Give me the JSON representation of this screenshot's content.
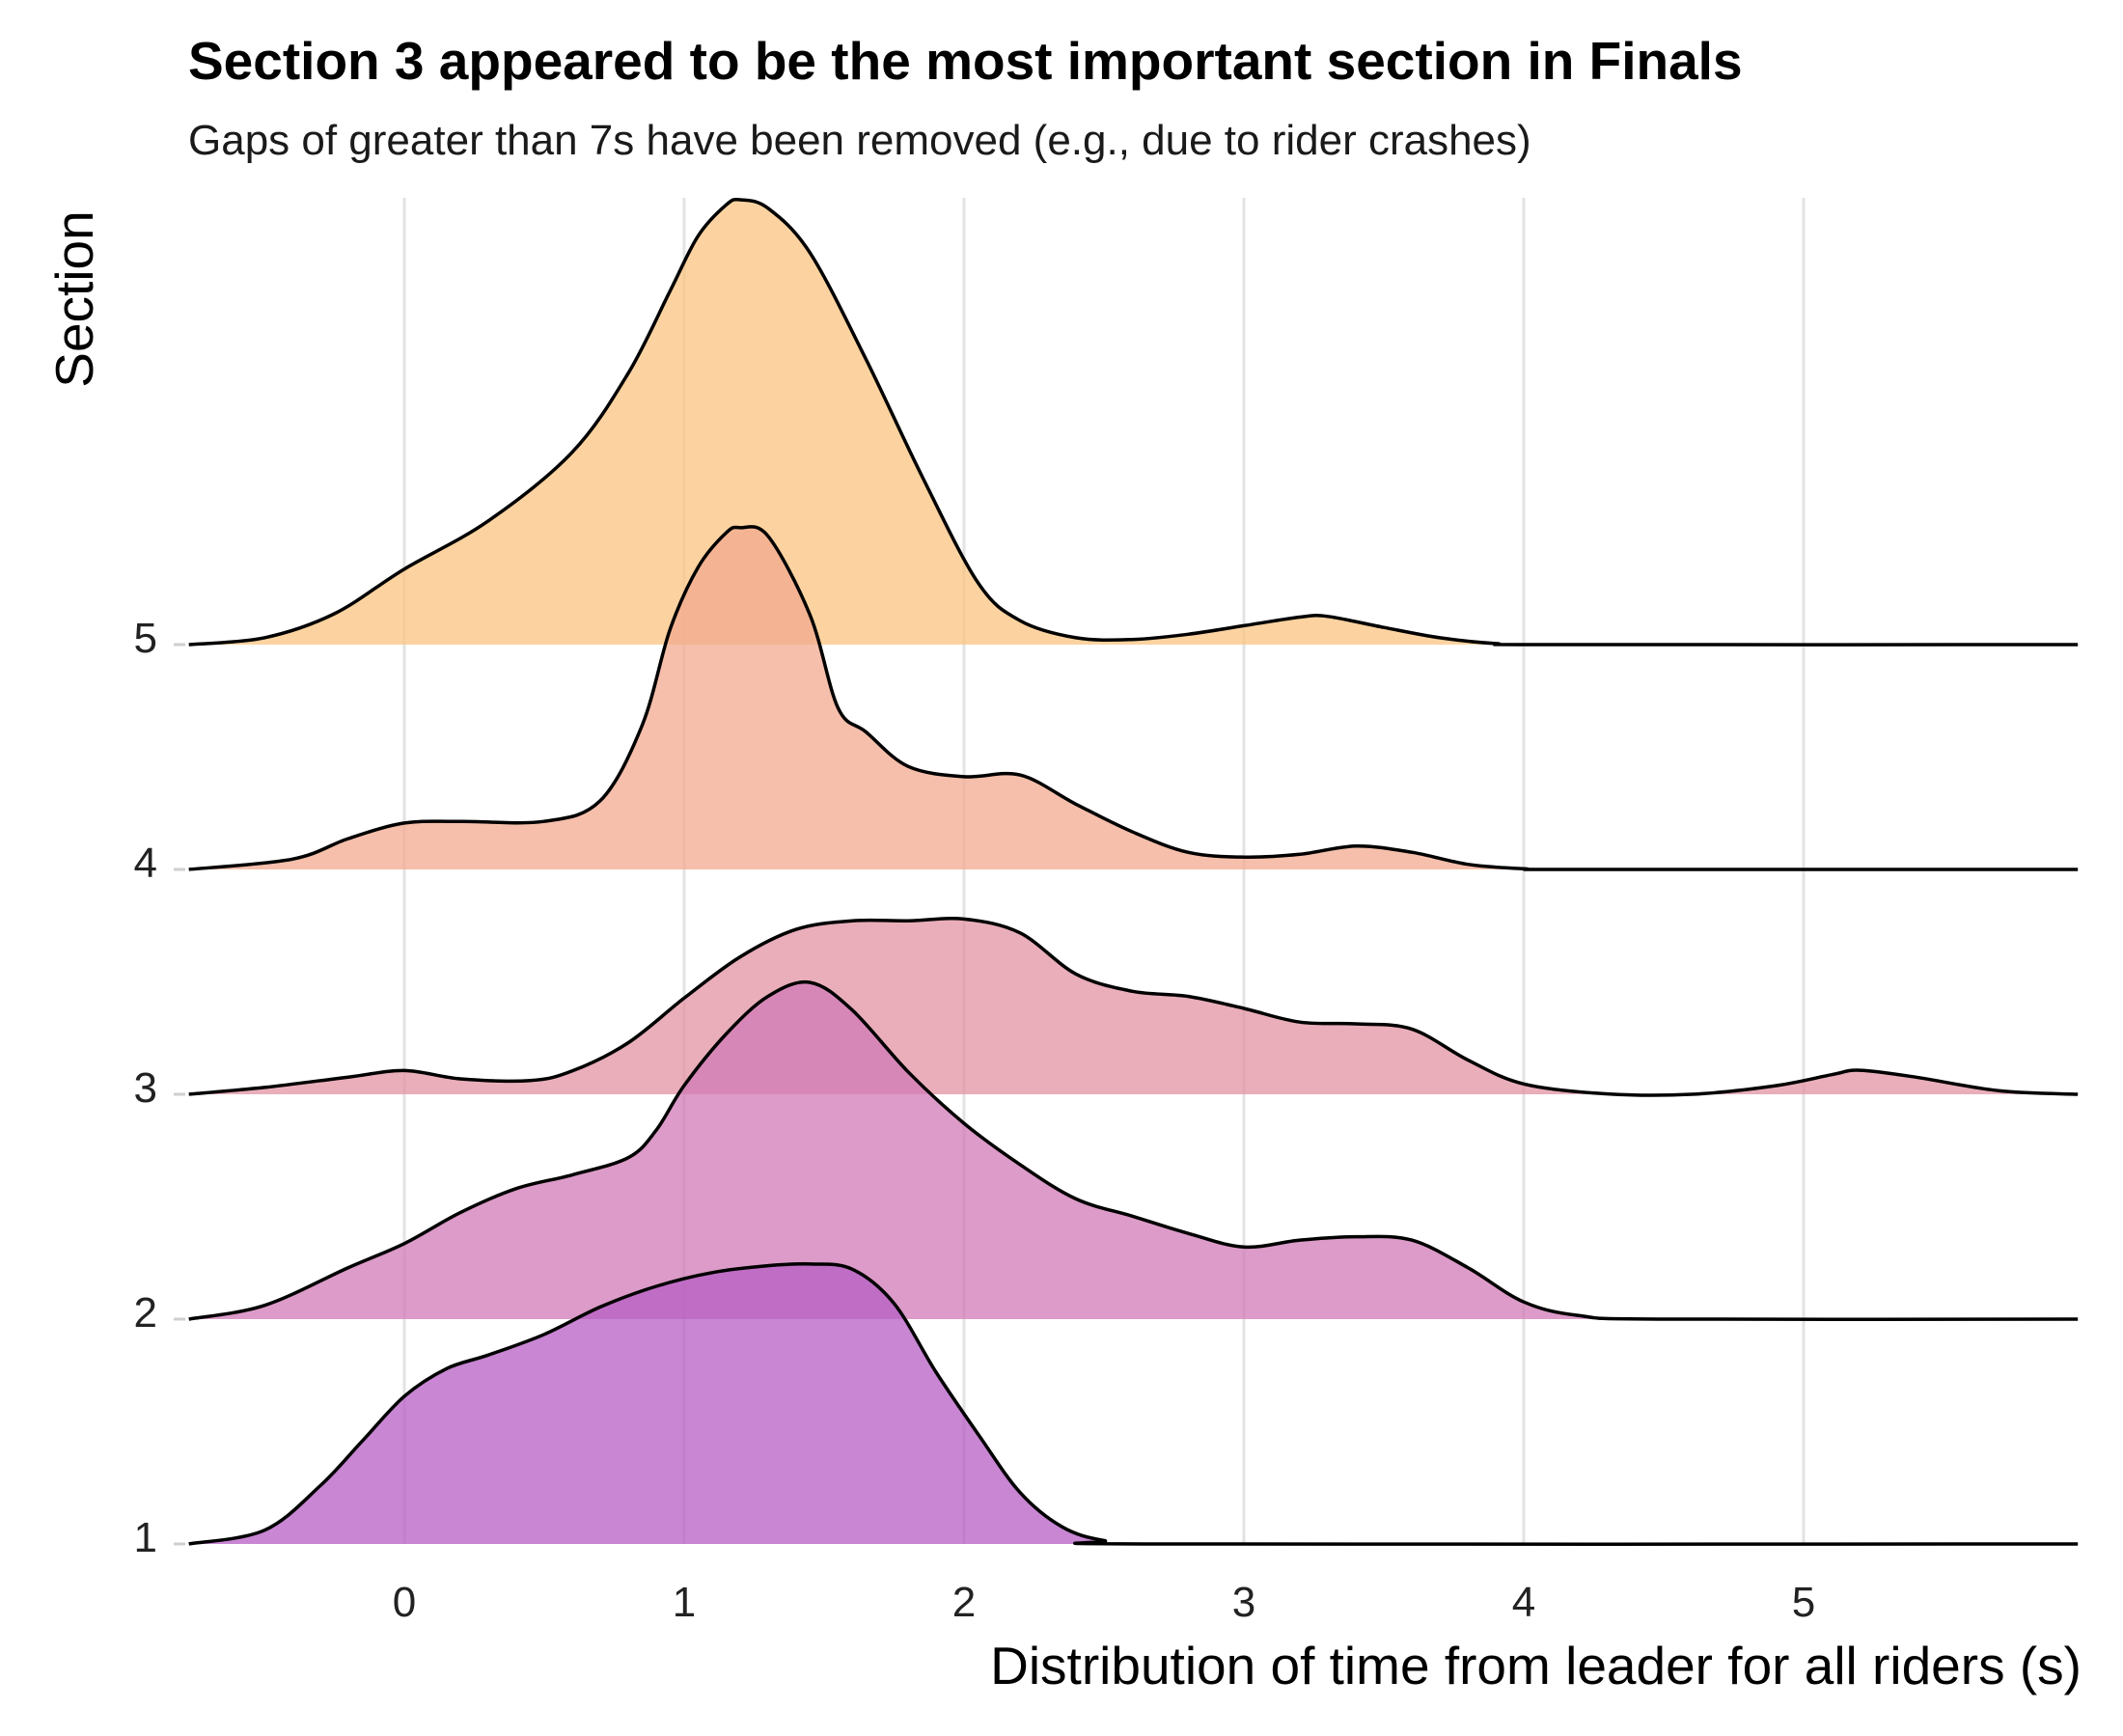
{
  "chart_data": {
    "type": "ridgeline",
    "title": "Section 3 appeared to be the most important section in Finals",
    "subtitle": "Gaps of greater than 7s have been removed (e.g., due to rider crashes)",
    "xlabel": "Distribution of time from leader for all riders (s)",
    "ylabel": "Section",
    "x_ticks": [
      0,
      1,
      2,
      3,
      4,
      5
    ],
    "y_ticks": [
      "1",
      "2",
      "3",
      "4",
      "5"
    ],
    "xlim": [
      -0.77,
      5.98
    ],
    "grid": "vertical major gridlines",
    "legend": "none",
    "series": [
      {
        "name": "1",
        "color": "#b55dc4",
        "points": [
          [
            -0.77,
            0.0
          ],
          [
            -0.5,
            0.04
          ],
          [
            -0.3,
            0.17
          ],
          [
            -0.15,
            0.3
          ],
          [
            0.0,
            0.43
          ],
          [
            0.15,
            0.51
          ],
          [
            0.3,
            0.55
          ],
          [
            0.5,
            0.61
          ],
          [
            0.7,
            0.69
          ],
          [
            0.9,
            0.75
          ],
          [
            1.1,
            0.79
          ],
          [
            1.3,
            0.81
          ],
          [
            1.45,
            0.815
          ],
          [
            1.6,
            0.8
          ],
          [
            1.75,
            0.7
          ],
          [
            1.9,
            0.5
          ],
          [
            2.05,
            0.32
          ],
          [
            2.2,
            0.15
          ],
          [
            2.35,
            0.05
          ],
          [
            2.5,
            0.01
          ],
          [
            2.7,
            0.0
          ],
          [
            5.98,
            0.0
          ]
        ]
      },
      {
        "name": "2",
        "color": "#d07ab5",
        "points": [
          [
            -0.77,
            0.0
          ],
          [
            -0.5,
            0.04
          ],
          [
            -0.2,
            0.15
          ],
          [
            0.0,
            0.22
          ],
          [
            0.2,
            0.31
          ],
          [
            0.4,
            0.38
          ],
          [
            0.6,
            0.42
          ],
          [
            0.8,
            0.47
          ],
          [
            0.9,
            0.55
          ],
          [
            1.0,
            0.68
          ],
          [
            1.15,
            0.83
          ],
          [
            1.3,
            0.94
          ],
          [
            1.45,
            0.98
          ],
          [
            1.6,
            0.9
          ],
          [
            1.8,
            0.72
          ],
          [
            2.0,
            0.57
          ],
          [
            2.2,
            0.45
          ],
          [
            2.4,
            0.35
          ],
          [
            2.6,
            0.3
          ],
          [
            2.8,
            0.25
          ],
          [
            3.0,
            0.21
          ],
          [
            3.2,
            0.23
          ],
          [
            3.4,
            0.24
          ],
          [
            3.6,
            0.23
          ],
          [
            3.8,
            0.15
          ],
          [
            4.0,
            0.05
          ],
          [
            4.2,
            0.01
          ],
          [
            4.5,
            0.0
          ],
          [
            5.98,
            0.0
          ]
        ]
      },
      {
        "name": "3",
        "color": "#e293a3",
        "points": [
          [
            -0.77,
            0.0
          ],
          [
            -0.5,
            0.02
          ],
          [
            -0.2,
            0.05
          ],
          [
            0.0,
            0.069
          ],
          [
            0.2,
            0.045
          ],
          [
            0.45,
            0.04
          ],
          [
            0.6,
            0.068
          ],
          [
            0.8,
            0.15
          ],
          [
            1.0,
            0.28
          ],
          [
            1.2,
            0.4
          ],
          [
            1.4,
            0.48
          ],
          [
            1.6,
            0.505
          ],
          [
            1.8,
            0.505
          ],
          [
            2.0,
            0.51
          ],
          [
            2.2,
            0.47
          ],
          [
            2.4,
            0.35
          ],
          [
            2.6,
            0.3
          ],
          [
            2.8,
            0.285
          ],
          [
            3.0,
            0.25
          ],
          [
            3.2,
            0.21
          ],
          [
            3.4,
            0.205
          ],
          [
            3.6,
            0.19
          ],
          [
            3.8,
            0.1
          ],
          [
            4.0,
            0.03
          ],
          [
            4.3,
            0.001
          ],
          [
            4.6,
            0.0
          ],
          [
            4.9,
            0.025
          ],
          [
            5.1,
            0.057
          ],
          [
            5.2,
            0.07
          ],
          [
            5.4,
            0.05
          ],
          [
            5.7,
            0.01
          ],
          [
            5.98,
            0.0
          ]
        ]
      },
      {
        "name": "4",
        "color": "#f2aa8f",
        "points": [
          [
            -0.77,
            0.0
          ],
          [
            -0.4,
            0.03
          ],
          [
            -0.2,
            0.09
          ],
          [
            0.0,
            0.135
          ],
          [
            0.2,
            0.14
          ],
          [
            0.5,
            0.14
          ],
          [
            0.7,
            0.2
          ],
          [
            0.85,
            0.42
          ],
          [
            0.95,
            0.7
          ],
          [
            1.05,
            0.88
          ],
          [
            1.15,
            0.98
          ],
          [
            1.2,
            0.995
          ],
          [
            1.3,
            0.97
          ],
          [
            1.45,
            0.74
          ],
          [
            1.55,
            0.47
          ],
          [
            1.65,
            0.4
          ],
          [
            1.8,
            0.3
          ],
          [
            2.0,
            0.27
          ],
          [
            2.2,
            0.275
          ],
          [
            2.4,
            0.19
          ],
          [
            2.6,
            0.11
          ],
          [
            2.8,
            0.05
          ],
          [
            3.0,
            0.036
          ],
          [
            3.2,
            0.044
          ],
          [
            3.4,
            0.068
          ],
          [
            3.6,
            0.05
          ],
          [
            3.8,
            0.015
          ],
          [
            4.0,
            0.002
          ],
          [
            4.2,
            0.0
          ],
          [
            5.98,
            0.0
          ]
        ]
      },
      {
        "name": "5",
        "color": "#fbc480",
        "points": [
          [
            -0.77,
            0.0
          ],
          [
            -0.5,
            0.02
          ],
          [
            -0.25,
            0.09
          ],
          [
            0.0,
            0.22
          ],
          [
            0.3,
            0.36
          ],
          [
            0.6,
            0.56
          ],
          [
            0.8,
            0.79
          ],
          [
            0.95,
            1.03
          ],
          [
            1.05,
            1.19
          ],
          [
            1.15,
            1.28
          ],
          [
            1.2,
            1.295
          ],
          [
            1.3,
            1.27
          ],
          [
            1.45,
            1.14
          ],
          [
            1.65,
            0.83
          ],
          [
            1.85,
            0.49
          ],
          [
            2.05,
            0.18
          ],
          [
            2.2,
            0.07
          ],
          [
            2.4,
            0.02
          ],
          [
            2.6,
            0.015
          ],
          [
            2.8,
            0.03
          ],
          [
            3.0,
            0.055
          ],
          [
            3.2,
            0.08
          ],
          [
            3.3,
            0.082
          ],
          [
            3.5,
            0.05
          ],
          [
            3.7,
            0.02
          ],
          [
            3.9,
            0.003
          ],
          [
            4.1,
            0.0
          ],
          [
            5.98,
            0.0
          ]
        ]
      }
    ]
  }
}
